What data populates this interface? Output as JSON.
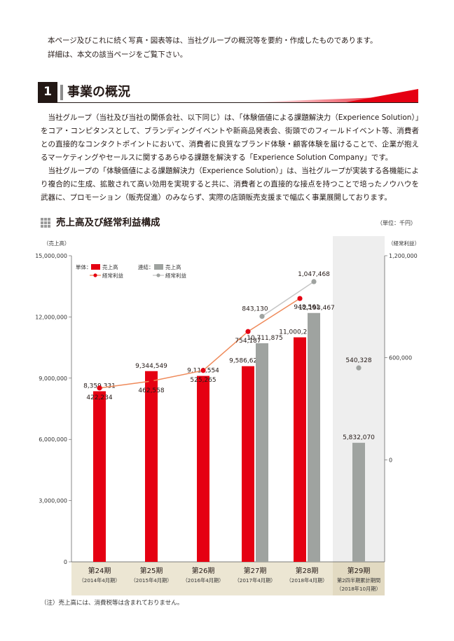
{
  "intro": {
    "line1": "本ページ及びこれに続く写真・図表等は、当社グループの概況等を要約・作成したものであります。",
    "line2": "詳細は、本文の該当ページをご覧下さい。"
  },
  "section": {
    "number": "1",
    "title": "事業の概況"
  },
  "body": {
    "para1": "当社グループ（当社及び当社の関係会社、以下同じ）は、「体験価値による課題解決力（Experience Solution）」をコア・コンピタンスとして、ブランディングイベントや新商品発表会、街頭でのフィールドイベント等、消費者との直接的なコンタクトポイントにおいて、消費者に良質なブランド体験・顧客体験を届けることで、企業が抱えるマーケティングやセールスに関するあらゆる課題を解決する「Experience Solution Company」です。",
    "para2": "当社グループの「体験価値による課題解決力（Experience Solution）」は、当社グループが実装する各機能により複合的に生成、拡散されて高い効用を実現すると共に、消費者との直接的な接点を持つことで培ったノウハウを武器に、プロモーション（販売促進）のみならず、実際の店頭販売支援まで幅広く事業展開しております。"
  },
  "chart_header": {
    "title": "売上高及び経常利益構成",
    "unit": "（単位：千円）"
  },
  "footnote": "（注）売上高には、消費税等は含まれておりません。",
  "colors": {
    "red": "#e50012",
    "gray": "#9fa3a0",
    "orange": "#ef8a5a",
    "light_gray_line": "#c6c6c6",
    "category_bg": "#ece6d3",
    "forecast_bg": "#eeeeee"
  },
  "chart_data": {
    "type": "bar",
    "left_axis_label": "（売上高）",
    "right_axis_label": "（経常利益）",
    "ylim_left": [
      0,
      15000000
    ],
    "ylim_right": [
      -600000,
      1200000
    ],
    "y_ticks_left": [
      "0",
      "3,000,000",
      "6,000,000",
      "9,000,000",
      "12,000,000",
      "15,000,000"
    ],
    "y_ticks_right": [
      "0",
      "600,000",
      "1,200,000"
    ],
    "categories": [
      {
        "label": "第24期",
        "sub": "（2014年4月期）"
      },
      {
        "label": "第25期",
        "sub": "（2015年4月期）"
      },
      {
        "label": "第26期",
        "sub": "（2016年4月期）"
      },
      {
        "label": "第27期",
        "sub": "（2017年4月期）"
      },
      {
        "label": "第28期",
        "sub": "（2018年4月期）"
      },
      {
        "label": "第29期",
        "sub": "第2四半期累計期間",
        "sub2": "（2018年10月期）"
      }
    ],
    "legend": {
      "standalone": "単体：",
      "consolidated": "連結：",
      "sales": "売上高",
      "profit": "経常利益"
    },
    "series": [
      {
        "name": "単体 売上高",
        "values": [
          8359331,
          9344549,
          9110554,
          9586622,
          11000223,
          null
        ],
        "labels": [
          "8,359,331",
          "9,344,549",
          "9,110,554",
          "9,586,622",
          "11,000,223",
          ""
        ]
      },
      {
        "name": "連結 売上高",
        "values": [
          null,
          null,
          null,
          10711875,
          12193467,
          5832070
        ],
        "labels": [
          "",
          "",
          "",
          "10,711,875",
          "12,193,467",
          "5,832,070"
        ]
      },
      {
        "name": "単体 経常利益",
        "values": [
          422234,
          462558,
          525265,
          754187,
          948561,
          null
        ],
        "labels": [
          "422,234",
          "462,558",
          "525,265",
          "754,187",
          "948,561",
          ""
        ]
      },
      {
        "name": "連結 経常利益",
        "values": [
          null,
          null,
          null,
          843130,
          1047468,
          540328
        ],
        "labels": [
          "",
          "",
          "",
          "843,130",
          "1,047,468",
          "540,328"
        ]
      }
    ]
  }
}
